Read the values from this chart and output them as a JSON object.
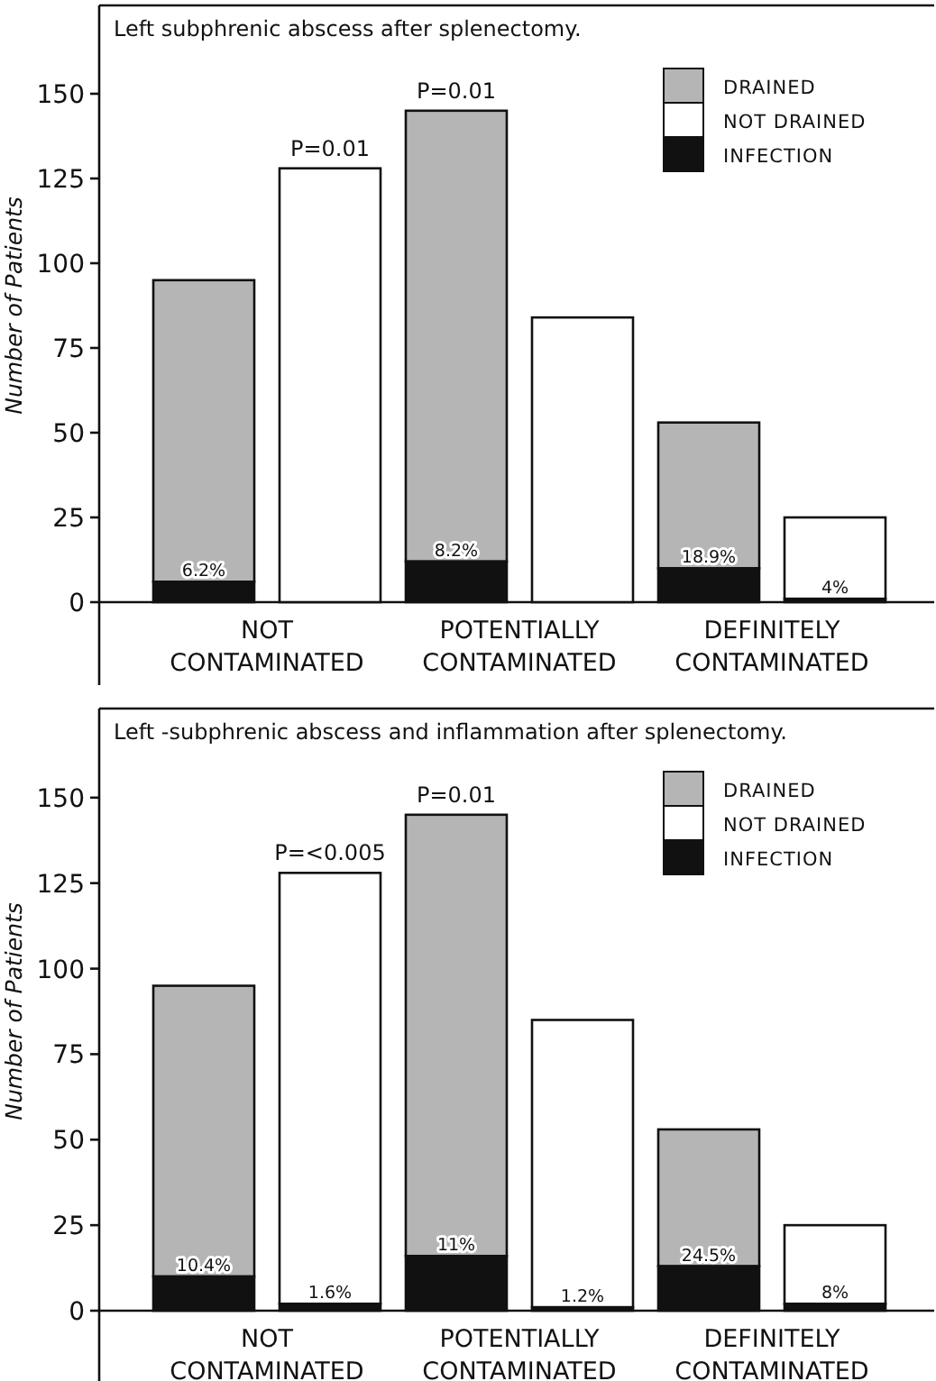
{
  "chart_data": [
    {
      "type": "bar",
      "title": "Left subphrenic abscess after splenectomy.",
      "ylabel": "Number of Patients",
      "categories": [
        "NOT CONTAMINATED",
        null,
        "POTENTIALLY CONTAMINATED",
        null,
        "DEFINITELY CONTAMINATED",
        null
      ],
      "stacked": true,
      "ylim": [
        0,
        175
      ],
      "yticks": [
        0,
        25,
        50,
        75,
        100,
        125,
        150
      ],
      "legend": "top right",
      "series": [
        {
          "name": "INFECTION",
          "color": "#111111",
          "values": [
            6,
            null,
            12,
            null,
            10,
            1
          ]
        },
        {
          "name": "DRAINED",
          "color": "#b5b5b5",
          "values": [
            89,
            null,
            133,
            null,
            43,
            null
          ]
        },
        {
          "name": "NOT DRAINED",
          "color": "#ffffff",
          "values": [
            null,
            128,
            null,
            84,
            null,
            24
          ]
        }
      ],
      "annotations": [
        "P=0.01",
        "P=0.01",
        "6.2%",
        "8.2%",
        "18.9%",
        "4%"
      ]
    },
    {
      "type": "bar",
      "title": "Left -subphrenic abscess and inflammation after splenectomy.",
      "ylabel": "Number of Patients",
      "categories": [
        "NOT CONTAMINATED",
        null,
        "POTENTIALLY CONTAMINATED",
        null,
        "DEFINITELY CONTAMINATED",
        null
      ],
      "stacked": true,
      "ylim": [
        0,
        175
      ],
      "yticks": [
        0,
        25,
        50,
        75,
        100,
        125,
        150
      ],
      "legend": "top right",
      "series": [
        {
          "name": "INFECTION",
          "color": "#111111",
          "values": [
            10,
            2,
            16,
            1,
            13,
            2
          ]
        },
        {
          "name": "DRAINED",
          "color": "#b5b5b5",
          "values": [
            85,
            null,
            129,
            null,
            40,
            null
          ]
        },
        {
          "name": "NOT DRAINED",
          "color": "#ffffff",
          "values": [
            null,
            126,
            null,
            84,
            null,
            23
          ]
        }
      ],
      "annotations": [
        "P=<0.005",
        "P=0.01",
        "10.4%",
        "11%",
        "24.5%",
        "1.6%",
        "1.2%",
        "8%"
      ]
    }
  ]
}
